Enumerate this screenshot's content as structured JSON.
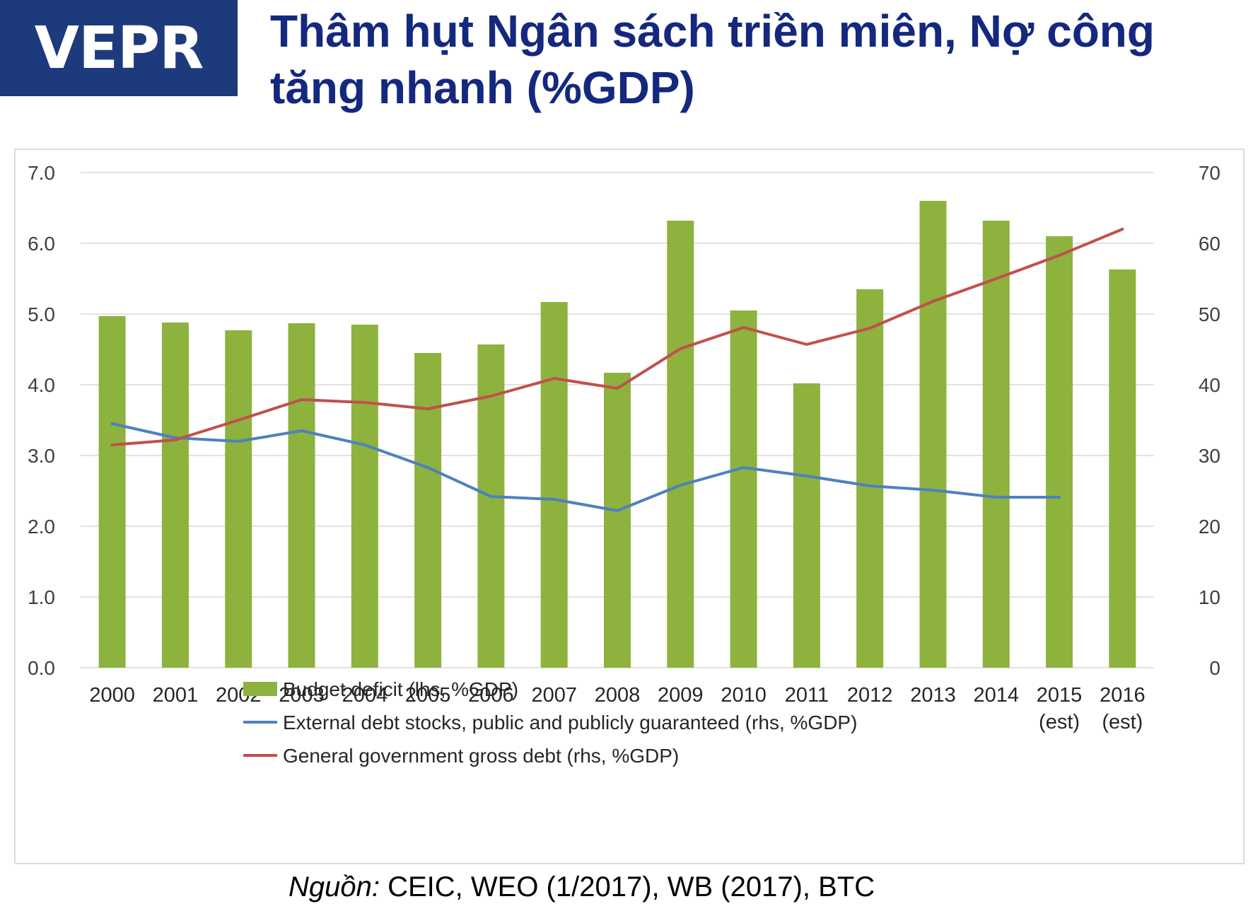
{
  "logo": {
    "text": "VEPR"
  },
  "slide": {
    "title": "Thâm hụt Ngân sách triền miên, Nợ công tăng nhanh (%GDP)",
    "source_prefix": "Nguồn:",
    "source_text": " CEIC, WEO (1/2017), WB (2017), BTC"
  },
  "chart_data": {
    "type": "bar",
    "title": "",
    "categories": [
      [
        "2000"
      ],
      [
        "2001"
      ],
      [
        "2002"
      ],
      [
        "2003"
      ],
      [
        "2004"
      ],
      [
        "2005"
      ],
      [
        "2006"
      ],
      [
        "2007"
      ],
      [
        "2008"
      ],
      [
        "2009"
      ],
      [
        "2010"
      ],
      [
        "2011"
      ],
      [
        "2012"
      ],
      [
        "2013"
      ],
      [
        "2014"
      ],
      [
        "2015",
        "(est)"
      ],
      [
        "2016",
        "(est)"
      ]
    ],
    "y_left": {
      "min": 0,
      "max": 7,
      "ticks": [
        "0.0",
        "1.0",
        "2.0",
        "3.0",
        "4.0",
        "5.0",
        "6.0",
        "7.0"
      ]
    },
    "y_right": {
      "min": 0,
      "max": 70,
      "ticks": [
        "0",
        "10",
        "20",
        "30",
        "40",
        "50",
        "60",
        "70"
      ]
    },
    "grid": true,
    "legend_position": "bottom",
    "series": [
      {
        "name": "Budget deficit (lhs, %GDP)",
        "kind": "bar",
        "axis": "left",
        "color": "#8db23e",
        "values": [
          4.97,
          4.88,
          4.77,
          4.87,
          4.85,
          4.45,
          4.57,
          5.17,
          4.17,
          6.32,
          5.05,
          4.02,
          5.35,
          6.6,
          6.32,
          6.1,
          5.63
        ]
      },
      {
        "name": "External debt stocks, public and publicly guaranteed (rhs, %GDP)",
        "kind": "line",
        "axis": "right",
        "color": "#4f81bd",
        "values": [
          34.5,
          32.5,
          32.0,
          33.5,
          31.5,
          28.3,
          24.2,
          23.8,
          22.2,
          25.8,
          28.3,
          27.1,
          25.7,
          25.1,
          24.1,
          24.1,
          null
        ]
      },
      {
        "name": "General government gross debt (rhs, %GDP)",
        "kind": "line",
        "axis": "right",
        "color": "#c0504d",
        "values": [
          31.5,
          32.2,
          35.0,
          37.9,
          37.5,
          36.6,
          38.4,
          40.9,
          39.5,
          45.1,
          48.1,
          45.7,
          48.0,
          51.8,
          55.0,
          58.3,
          62.0
        ]
      }
    ]
  }
}
